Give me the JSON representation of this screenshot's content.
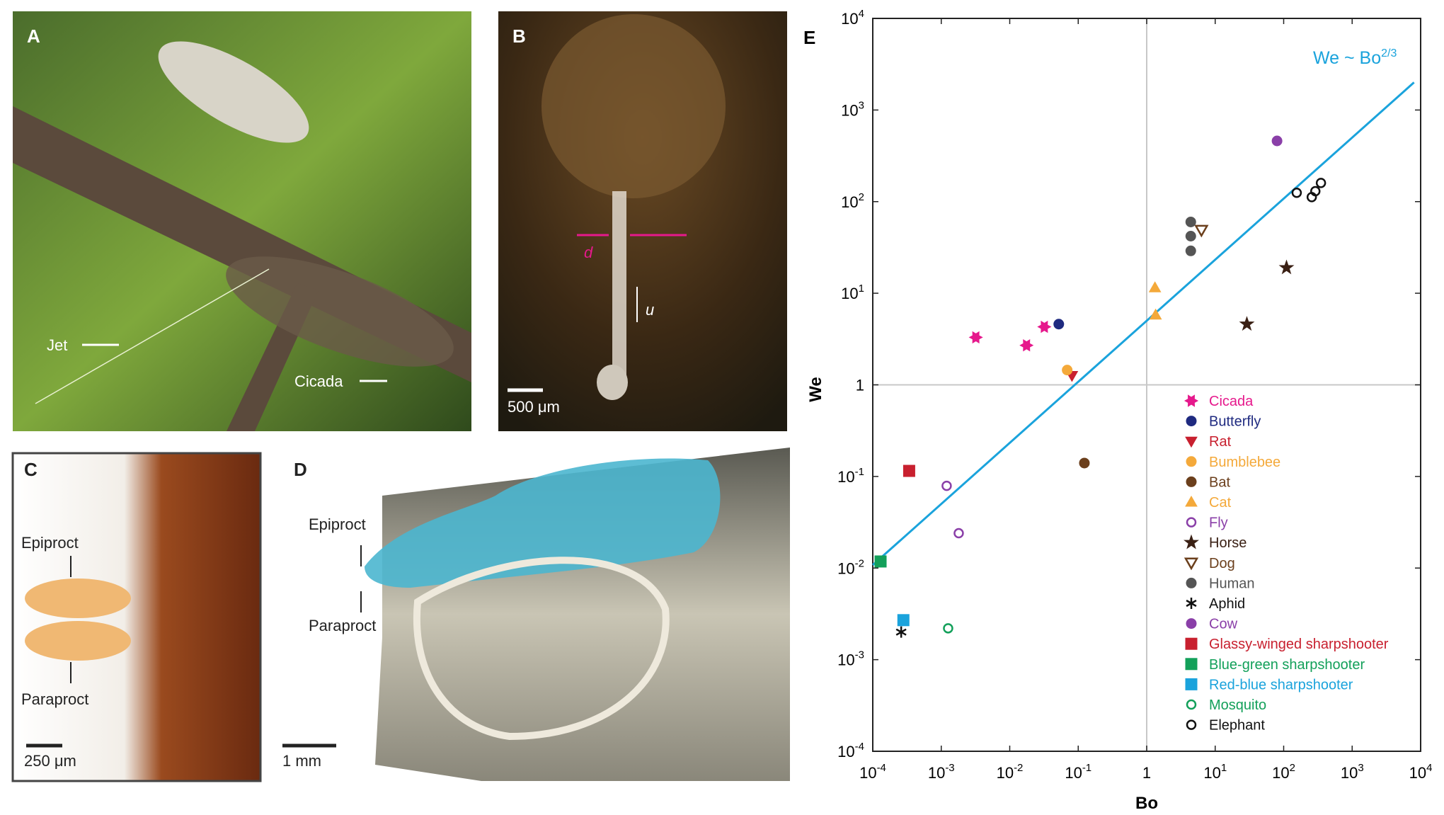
{
  "panels": [
    {
      "label": "A",
      "annotations": [
        "Jet",
        "Cicada"
      ]
    },
    {
      "label": "B",
      "annotations": [
        "d",
        "u",
        "500 μm"
      ]
    },
    {
      "label": "C",
      "annotations": [
        "Epiproct",
        "Paraproct",
        "250 μm"
      ]
    },
    {
      "label": "D",
      "annotations": [
        "Epiproct",
        "Paraproct",
        "1 mm"
      ]
    }
  ],
  "chart_data": {
    "type": "scatter",
    "panel_label": "E",
    "x_label": "Bo",
    "y_label": "We",
    "log_x": true,
    "log_y": true,
    "xlim": [
      0.0001,
      10000
    ],
    "ylim": [
      0.0001,
      10000
    ],
    "xticks": [
      {
        "value": 0.0001,
        "label": "10",
        "sup": "-4"
      },
      {
        "value": 0.001,
        "label": "10",
        "sup": "-3"
      },
      {
        "value": 0.01,
        "label": "10",
        "sup": "-2"
      },
      {
        "value": 0.1,
        "label": "10",
        "sup": "-1"
      },
      1,
      {
        "value": 10,
        "label": "10",
        "sup": "1"
      },
      {
        "value": 100,
        "label": "10",
        "sup": "2"
      },
      {
        "value": 1000,
        "label": "10",
        "sup": "3"
      },
      {
        "value": 10000,
        "label": "10",
        "sup": "4"
      }
    ],
    "yticks": [
      {
        "value": 0.0001,
        "label": "10",
        "sup": "-4"
      },
      {
        "value": 0.001,
        "label": "10",
        "sup": "-3"
      },
      {
        "value": 0.01,
        "label": "10",
        "sup": "-2"
      },
      {
        "value": 0.1,
        "label": "10",
        "sup": "-1"
      },
      1,
      {
        "value": 10,
        "label": "10",
        "sup": "1"
      },
      {
        "value": 100,
        "label": "10",
        "sup": "2"
      },
      {
        "value": 1000,
        "label": "10",
        "sup": "3"
      },
      {
        "value": 10000,
        "label": "10",
        "sup": "4"
      }
    ],
    "grid_x": [
      1
    ],
    "grid_y": [
      1
    ],
    "fit": {
      "label": "We ~ Bo",
      "label_sup": "2/3",
      "color": "#1aa3dc",
      "x": [
        0.0001,
        8000
      ],
      "values": [
        0.0108,
        2000
      ]
    },
    "series": [
      {
        "name": "Cicada",
        "color": "#e6198c",
        "marker": "hexagon",
        "filled": true,
        "x": [
          0.0032,
          0.0176,
          0.032
        ],
        "values": [
          3.3,
          2.7,
          4.3
        ]
      },
      {
        "name": "Butterfly",
        "color": "#1f2a80",
        "marker": "circle",
        "filled": true,
        "x": [
          0.052
        ],
        "values": [
          4.6
        ]
      },
      {
        "name": "Rat",
        "color": "#c8202f",
        "marker": "triangle-down",
        "filled": true,
        "x": [
          0.081
        ],
        "values": [
          1.26
        ]
      },
      {
        "name": "Bumblebee",
        "color": "#f4a93a",
        "marker": "circle",
        "filled": true,
        "x": [
          0.069
        ],
        "values": [
          1.45
        ]
      },
      {
        "name": "Bat",
        "color": "#6b3f1c",
        "marker": "circle",
        "filled": true,
        "x": [
          0.123
        ],
        "values": [
          0.14
        ]
      },
      {
        "name": "Cat",
        "color": "#f4a93a",
        "marker": "triangle-up",
        "filled": true,
        "x": [
          1.32,
          1.35
        ],
        "values": [
          11.5,
          5.8
        ]
      },
      {
        "name": "Fly",
        "color": "#8a3fa8",
        "marker": "circle",
        "filled": false,
        "x": [
          0.0012,
          0.0018
        ],
        "values": [
          0.079,
          0.024
        ]
      },
      {
        "name": "Horse",
        "color": "#3a2014",
        "marker": "star",
        "filled": true,
        "x": [
          110,
          29
        ],
        "values": [
          19,
          4.6
        ]
      },
      {
        "name": "Dog",
        "color": "#6b3f1c",
        "marker": "triangle-down",
        "filled": false,
        "x": [
          6.3
        ],
        "values": [
          49
        ]
      },
      {
        "name": "Human",
        "color": "#555555",
        "marker": "circle",
        "filled": true,
        "x": [
          4.4,
          4.4,
          4.4
        ],
        "values": [
          60,
          42,
          29
        ]
      },
      {
        "name": "Aphid",
        "color": "#111111",
        "marker": "asterisk",
        "filled": true,
        "x": [
          0.00026
        ],
        "values": [
          0.002
        ]
      },
      {
        "name": "Cow",
        "color": "#8a3fa8",
        "marker": "circle",
        "filled": true,
        "x": [
          80
        ],
        "values": [
          460
        ]
      },
      {
        "name": "Glassy-winged sharpshooter",
        "color": "#c8202f",
        "marker": "square",
        "filled": true,
        "x": [
          0.00034
        ],
        "values": [
          0.115
        ]
      },
      {
        "name": "Blue-green sharpshooter",
        "color": "#13a05a",
        "marker": "square",
        "filled": true,
        "x": [
          0.00013
        ],
        "values": [
          0.0118
        ]
      },
      {
        "name": "Red-blue sharpshooter",
        "color": "#1aa3dc",
        "marker": "square",
        "filled": true,
        "x": [
          0.00028
        ],
        "values": [
          0.0027
        ]
      },
      {
        "name": "Mosquito",
        "color": "#13a05a",
        "marker": "circle",
        "filled": false,
        "x": [
          0.00126
        ],
        "values": [
          0.0022
        ]
      },
      {
        "name": "Elephant",
        "color": "#111111",
        "marker": "circle",
        "filled": false,
        "x": [
          155,
          257,
          290,
          350
        ],
        "values": [
          125,
          112,
          130,
          160
        ]
      }
    ]
  }
}
